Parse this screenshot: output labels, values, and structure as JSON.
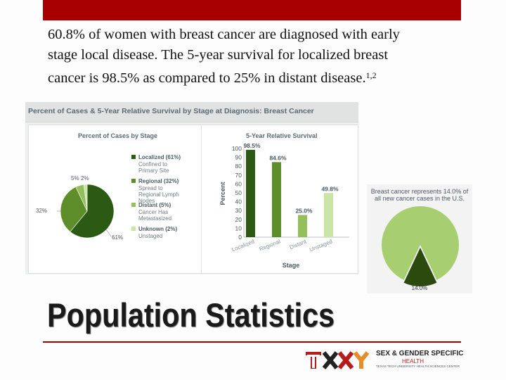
{
  "slide": {
    "intro_line1": "60.8% of women with breast cancer are diagnosed with early",
    "intro_line2": "stage local disease. The 5-year survival for localized breast",
    "intro_line3_text": "cancer is 98.5%  as compared to 25% in distant disease.",
    "intro_sup": "1,2",
    "heading": "Population Statistics"
  },
  "colors": {
    "accent_red": "#a80000",
    "dark_green": "#2c5a14",
    "mid_green": "#5e8e2a",
    "light_green": "#a8ce72",
    "pale_green": "#c9e4a3"
  },
  "chart_data": [
    {
      "type": "pie",
      "title": "Percent of Cases & 5-Year Relative Survival by Stage at Diagnosis: Breast Cancer",
      "subtitle": "Percent of Cases by Stage",
      "slices": [
        {
          "label": "Localized (61%)",
          "sublabel": "Confined to Primary Site",
          "value": 61,
          "data_label": "61%",
          "color": "#2c5a14"
        },
        {
          "label": "Regional (32%)",
          "sublabel": "Spread to Regional Lymph Nodes",
          "value": 32,
          "data_label": "32%",
          "color": "#5e8e2a"
        },
        {
          "label": "Distant (5%)",
          "sublabel": "Cancer Has Metastasized",
          "value": 5,
          "data_label": "5%",
          "color": "#94bf5c"
        },
        {
          "label": "Unknown (2%)",
          "sublabel": "Unstaged",
          "value": 2,
          "data_label": "2%",
          "color": "#c9e4a3"
        }
      ],
      "legend_position": "right"
    },
    {
      "type": "bar",
      "subtitle": "5-Year Relative Survival",
      "categories": [
        "Localized",
        "Regional",
        "Distant",
        "Unstaged"
      ],
      "values": [
        98.5,
        84.6,
        25.0,
        49.8
      ],
      "data_labels": [
        "98.5%",
        "84.6%",
        "25.0%",
        "49.8%"
      ],
      "colors": [
        "#2c5a14",
        "#5e8e2a",
        "#94bf5c",
        "#c9e4a3"
      ],
      "xlabel": "Stage",
      "ylabel": "Percent",
      "ylim": [
        0,
        100
      ],
      "yticks": [
        "0",
        "10",
        "20",
        "30",
        "40",
        "50",
        "60",
        "70",
        "80",
        "90",
        "100"
      ],
      "grid": false
    },
    {
      "type": "pie",
      "annotation": "Breast cancer represents 14.0% of all new cancer cases in the U.S.",
      "slices": [
        {
          "value": 86.0,
          "color": "#a8ce72"
        },
        {
          "value": 14.0,
          "data_label": "14.0%",
          "color": "#2c4a0e"
        }
      ]
    }
  ]
}
